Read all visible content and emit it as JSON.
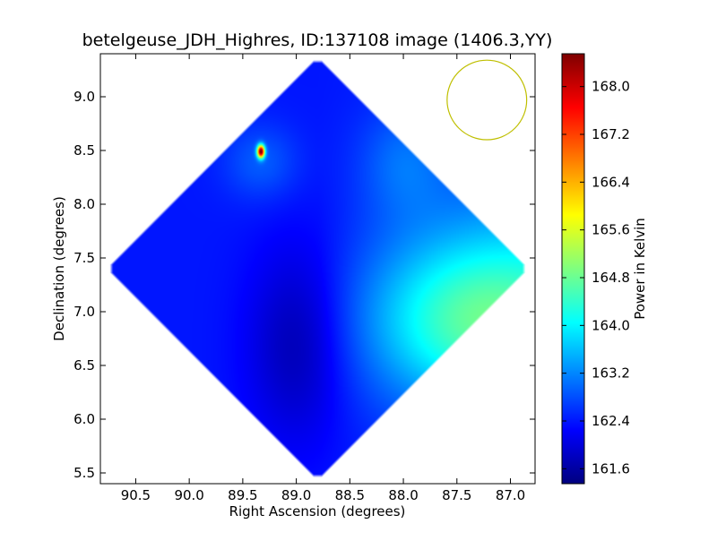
{
  "chart_data": {
    "type": "heatmap",
    "title": "betelgeuse_JDH_Highres, ID:137108 image (1406.3,YY)",
    "xlabel": "Right Ascension (degrees)",
    "ylabel": "Declination (degrees)",
    "colorbar_label": "Power in Kelvin",
    "xlim": [
      90.83,
      86.77
    ],
    "ylim": [
      5.4,
      9.4
    ],
    "x_ticks": [
      90.5,
      90.0,
      89.5,
      89.0,
      88.5,
      88.0,
      87.5,
      87.0
    ],
    "x_tick_labels": [
      "90.5",
      "90.0",
      "89.5",
      "89.0",
      "88.5",
      "88.0",
      "87.5",
      "87.0"
    ],
    "y_ticks": [
      5.5,
      6.0,
      6.5,
      7.0,
      7.5,
      8.0,
      8.5,
      9.0
    ],
    "y_tick_labels": [
      "5.5",
      "6.0",
      "6.5",
      "7.0",
      "7.5",
      "8.0",
      "8.5",
      "9.0"
    ],
    "colorbar_range": [
      161.35,
      168.55
    ],
    "colorbar_ticks": [
      161.6,
      162.4,
      163.2,
      164.0,
      164.8,
      165.6,
      166.4,
      167.2,
      168.0
    ],
    "colorbar_tick_labels": [
      "161.6",
      "162.4",
      "163.2",
      "164.0",
      "164.8",
      "165.6",
      "166.4",
      "167.2",
      "168.0"
    ],
    "colormap": "jet",
    "map_center": [
      88.8,
      7.4
    ],
    "map_half_diagonal": [
      1.98,
      1.98
    ],
    "background_level": 162.4,
    "features": [
      {
        "ra": 89.33,
        "dec": 8.49,
        "peak": 168.3,
        "kind": "source"
      },
      {
        "ra": 87.3,
        "dec": 6.9,
        "peak": 164.2,
        "kind": "warm-region"
      },
      {
        "ra": 89.0,
        "dec": 6.7,
        "peak": 161.7,
        "kind": "cold-region"
      }
    ],
    "beam": {
      "ra": 87.22,
      "dec": 8.97,
      "radius": 0.37,
      "color": "#bfbf00"
    },
    "grid": false
  }
}
